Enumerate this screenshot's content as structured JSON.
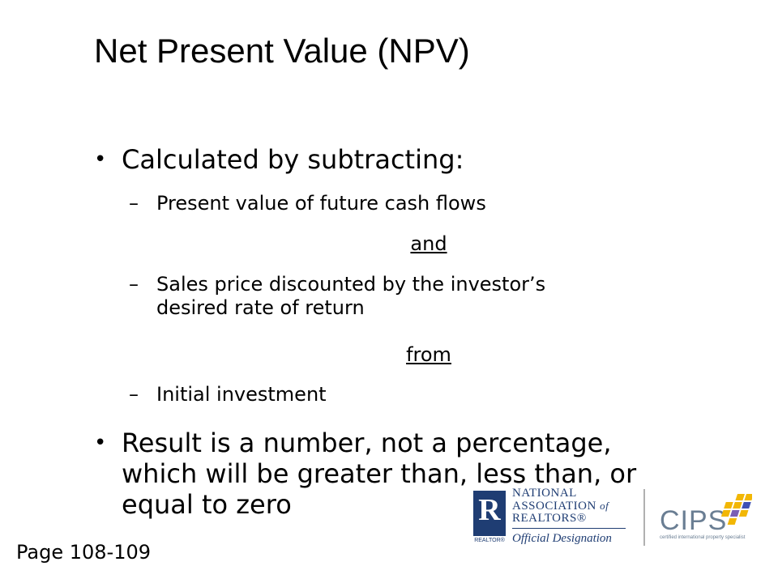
{
  "slide": {
    "title": "Net Present Value (NPV)",
    "bullets": {
      "b1": "Calculated by subtracting:",
      "sub1": "Present value of future cash flows",
      "and": "and",
      "sub2_line1": "Sales price discounted by the investor’s",
      "sub2_line2": "desired rate of return",
      "from": "from",
      "sub3": "Initial investment",
      "b2_line1": "Result is a number, not a percentage,",
      "b2_line2": "which will be greater than, less than, or",
      "b2_line3": "equal to zero"
    },
    "bullet_glyph": "•",
    "dash_glyph": "–",
    "page_label": "Page 108-109"
  },
  "logos": {
    "nar_line1": "NATIONAL",
    "nar_line2": "ASSOCIATION",
    "nar_of": "of",
    "nar_line3": "REALTORS®",
    "nar_official": "Official Designation",
    "nar_mark_letter": "R",
    "nar_mark_caption": "REALTOR®",
    "cips_name": "CIPS",
    "cips_tagline": "certified international property specialist",
    "nar_color": "#1f3d73",
    "cips_color": "#6a7e93",
    "cips_accent": "#f2b705"
  }
}
